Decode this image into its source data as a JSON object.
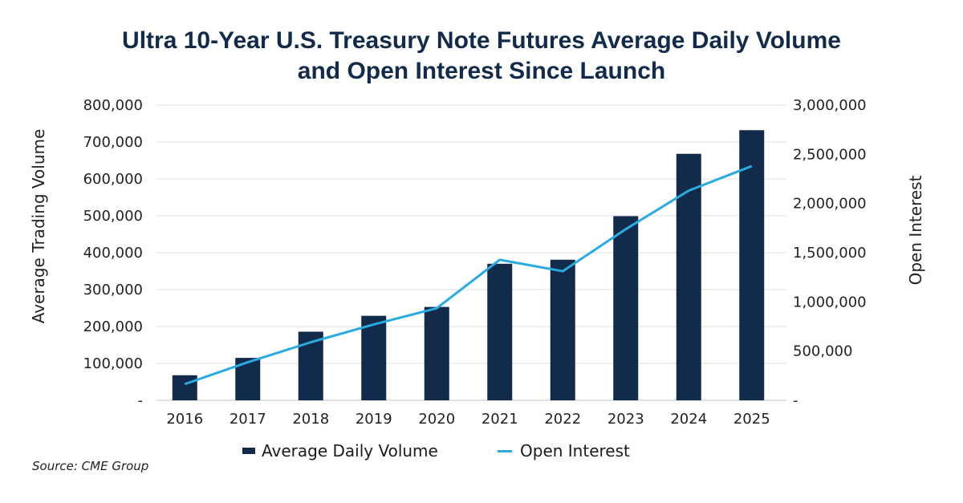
{
  "title_line1": "Ultra 10-Year U.S. Treasury Note Futures Average Daily Volume",
  "title_line2": "and Open Interest Since Launch",
  "source": "Source: CME Group",
  "colors": {
    "bar": "#132b4a",
    "line": "#29abe2",
    "grid": "#e3e3e3"
  },
  "chart_data": {
    "type": "bar+line",
    "categories": [
      "2016",
      "2017",
      "2018",
      "2019",
      "2020",
      "2021",
      "2022",
      "2023",
      "2024",
      "2025"
    ],
    "series": [
      {
        "name": "Average Daily Volume",
        "type": "bar",
        "axis": "left",
        "values": [
          68000,
          115000,
          186000,
          229000,
          253000,
          370000,
          381000,
          499000,
          668000,
          732000
        ]
      },
      {
        "name": "Open Interest",
        "type": "line",
        "axis": "right",
        "values": [
          165000,
          387000,
          590000,
          771000,
          936000,
          1428000,
          1312000,
          1739000,
          2131000,
          2380000
        ]
      }
    ],
    "ylabel": "Average Trading Volume",
    "y2label": "Open Interest",
    "ylim": [
      0,
      800000
    ],
    "y2lim": [
      0,
      3000000
    ],
    "yticks": [
      "-",
      "100,000",
      "200,000",
      "300,000",
      "400,000",
      "500,000",
      "600,000",
      "700,000",
      "800,000"
    ],
    "y2ticks": [
      "-",
      "500,000",
      "1,000,000",
      "1,500,000",
      "2,000,000",
      "2,500,000",
      "3,000,000"
    ],
    "grid": true,
    "legend": "bottom"
  }
}
